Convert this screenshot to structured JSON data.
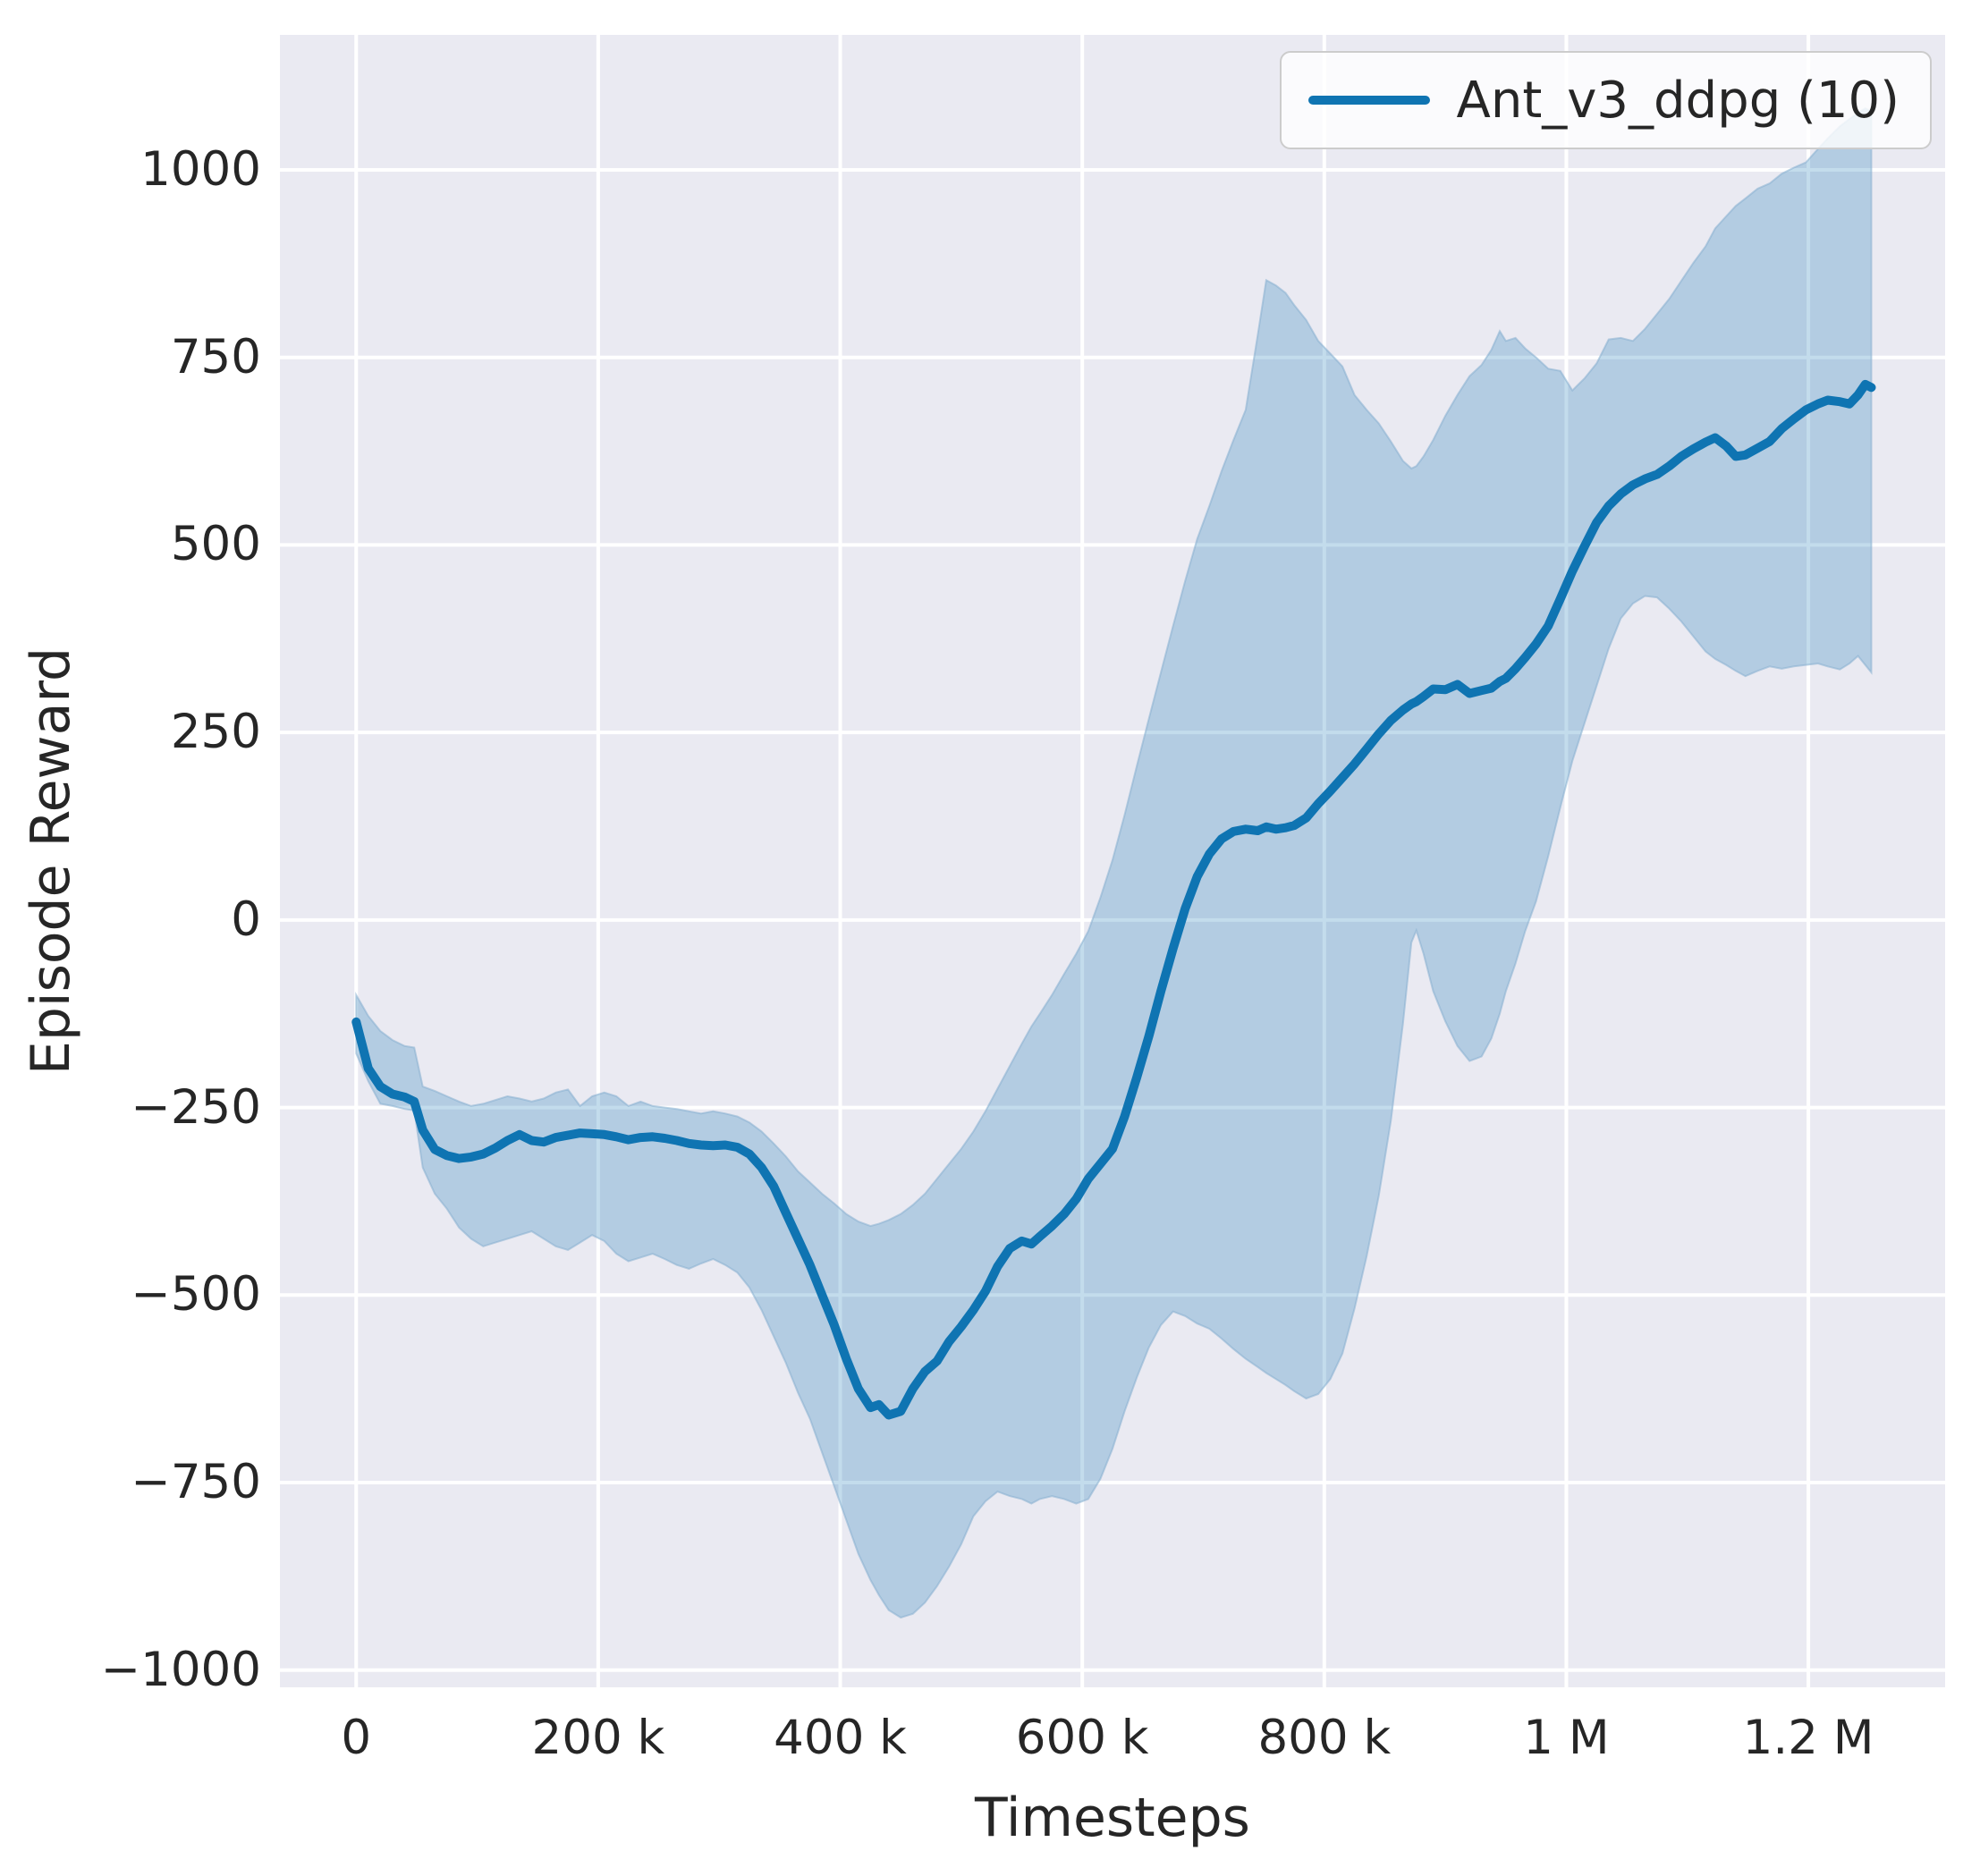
{
  "colors": {
    "accent": "#0f74b2",
    "band_fill": "#0f74b2",
    "band_opacity": 0.25,
    "band_edge": "#87aed0",
    "plot_bg": "#eaeaf2",
    "grid": "#ffffff",
    "text": "#262626",
    "figure_bg": "#ffffff"
  },
  "legend": {
    "label": "Ant_v3_ddpg (10)"
  },
  "axes": {
    "ylabel": "Episode Reward",
    "xlabel": "Timesteps",
    "xticks": [
      {
        "t": 0,
        "label": "0"
      },
      {
        "t": 200000,
        "label": "200 k"
      },
      {
        "t": 400000,
        "label": "400 k"
      },
      {
        "t": 600000,
        "label": "600 k"
      },
      {
        "t": 800000,
        "label": "800 k"
      },
      {
        "t": 1000000,
        "label": "1 M"
      },
      {
        "t": 1200000,
        "label": "1.2 M"
      }
    ],
    "yticks": [
      {
        "v": 1000,
        "label": "1000"
      },
      {
        "v": 750,
        "label": "750"
      },
      {
        "v": 500,
        "label": "500"
      },
      {
        "v": 250,
        "label": "250"
      },
      {
        "v": 0,
        "label": "0"
      },
      {
        "v": -250,
        "label": "−250"
      },
      {
        "v": -500,
        "label": "−500"
      },
      {
        "v": -750,
        "label": "−750"
      },
      {
        "v": -1000,
        "label": "−1000"
      }
    ]
  },
  "chart_data": {
    "type": "line",
    "title": "",
    "xlabel": "Timesteps",
    "ylabel": "Episode Reward",
    "legend_position": "upper right",
    "grid": true,
    "xlim": [
      -63000,
      1313000
    ],
    "ylim": [
      -1023,
      1180
    ],
    "series": [
      {
        "name": "Ant_v3_ddpg (10)",
        "t_scale": 1000,
        "t_k": [
          0,
          10,
          20,
          30,
          40,
          48,
          55,
          65,
          75,
          85,
          95,
          105,
          115,
          125,
          135,
          145,
          155,
          165,
          175,
          185,
          195,
          205,
          215,
          225,
          235,
          245,
          255,
          265,
          275,
          285,
          295,
          305,
          315,
          325,
          335,
          345,
          355,
          365,
          375,
          385,
          395,
          405,
          415,
          425,
          432,
          440,
          450,
          460,
          470,
          480,
          490,
          500,
          510,
          520,
          530,
          540,
          550,
          558,
          565,
          575,
          585,
          595,
          605,
          615,
          625,
          635,
          645,
          655,
          665,
          675,
          685,
          695,
          705,
          715,
          725,
          735,
          745,
          752,
          760,
          768,
          775,
          785,
          795,
          805,
          815,
          825,
          835,
          845,
          855,
          865,
          872,
          876,
          882,
          890,
          900,
          910,
          920,
          930,
          938,
          945,
          950,
          958,
          966,
          975,
          985,
          995,
          1005,
          1015,
          1025,
          1035,
          1045,
          1055,
          1065,
          1075,
          1085,
          1095,
          1105,
          1115,
          1123,
          1132,
          1140,
          1148,
          1158,
          1168,
          1178,
          1188,
          1198,
          1208,
          1216,
          1226,
          1234,
          1241,
          1247,
          1252
        ],
        "mean": [
          -136,
          -198,
          -222,
          -232,
          -236,
          -242,
          -280,
          -306,
          -314,
          -318,
          -316,
          -312,
          -304,
          -294,
          -286,
          -294,
          -296,
          -290,
          -287,
          -284,
          -285,
          -286,
          -289,
          -293,
          -290,
          -289,
          -291,
          -294,
          -298,
          -300,
          -301,
          -300,
          -303,
          -312,
          -330,
          -355,
          -390,
          -425,
          -460,
          -500,
          -540,
          -585,
          -625,
          -650,
          -646,
          -660,
          -655,
          -625,
          -602,
          -588,
          -562,
          -542,
          -520,
          -495,
          -462,
          -438,
          -428,
          -432,
          -422,
          -408,
          -392,
          -372,
          -345,
          -325,
          -305,
          -262,
          -210,
          -155,
          -95,
          -38,
          15,
          58,
          88,
          108,
          118,
          121,
          119,
          124,
          121,
          123,
          126,
          136,
          155,
          172,
          190,
          208,
          228,
          248,
          266,
          280,
          288,
          291,
          298,
          308,
          307,
          314,
          302,
          306,
          309,
          318,
          322,
          335,
          350,
          368,
          392,
          428,
          465,
          498,
          530,
          552,
          568,
          580,
          588,
          594,
          605,
          618,
          628,
          637,
          643,
          632,
          618,
          620,
          629,
          638,
          655,
          668,
          680,
          688,
          693,
          691,
          688,
          700,
          714,
          710
        ],
        "lower": [
          -178,
          -215,
          -245,
          -248,
          -252,
          -254,
          -330,
          -365,
          -385,
          -410,
          -425,
          -435,
          -430,
          -425,
          -420,
          -415,
          -425,
          -435,
          -440,
          -430,
          -420,
          -428,
          -445,
          -455,
          -450,
          -445,
          -452,
          -460,
          -465,
          -458,
          -452,
          -460,
          -470,
          -490,
          -520,
          -555,
          -590,
          -630,
          -665,
          -710,
          -755,
          -800,
          -845,
          -880,
          -900,
          -920,
          -930,
          -925,
          -910,
          -888,
          -862,
          -832,
          -795,
          -775,
          -762,
          -768,
          -772,
          -778,
          -772,
          -768,
          -772,
          -778,
          -772,
          -745,
          -705,
          -655,
          -610,
          -570,
          -540,
          -522,
          -528,
          -538,
          -545,
          -558,
          -572,
          -585,
          -596,
          -604,
          -612,
          -620,
          -628,
          -638,
          -632,
          -612,
          -578,
          -518,
          -448,
          -368,
          -268,
          -138,
          -30,
          -14,
          -45,
          -95,
          -135,
          -168,
          -188,
          -182,
          -158,
          -125,
          -95,
          -58,
          -15,
          25,
          85,
          150,
          212,
          262,
          312,
          362,
          402,
          422,
          432,
          430,
          415,
          398,
          378,
          358,
          348,
          340,
          332,
          325,
          332,
          338,
          335,
          338,
          340,
          342,
          338,
          334,
          342,
          352,
          340,
          330
        ],
        "upper": [
          -100,
          -128,
          -148,
          -160,
          -168,
          -170,
          -222,
          -228,
          -235,
          -242,
          -248,
          -245,
          -240,
          -235,
          -238,
          -242,
          -238,
          -230,
          -226,
          -248,
          -235,
          -230,
          -235,
          -248,
          -242,
          -248,
          -250,
          -252,
          -255,
          -258,
          -255,
          -258,
          -262,
          -270,
          -282,
          -298,
          -315,
          -335,
          -350,
          -365,
          -378,
          -392,
          -402,
          -408,
          -405,
          -400,
          -392,
          -380,
          -365,
          -345,
          -325,
          -305,
          -282,
          -255,
          -225,
          -195,
          -165,
          -142,
          -125,
          -100,
          -72,
          -45,
          -15,
          30,
          80,
          140,
          205,
          268,
          330,
          392,
          452,
          508,
          552,
          598,
          640,
          680,
          780,
          853,
          846,
          836,
          820,
          800,
          772,
          755,
          738,
          700,
          680,
          662,
          638,
          612,
          602,
          605,
          618,
          640,
          672,
          700,
          725,
          740,
          760,
          785,
          772,
          776,
          762,
          750,
          735,
          732,
          706,
          722,
          742,
          774,
          776,
          772,
          788,
          808,
          828,
          852,
          876,
          898,
          922,
          938,
          952,
          962,
          975,
          982,
          995,
          1003,
          1010,
          1028,
          1042,
          1058,
          1068,
          1076,
          1082,
          1078
        ]
      }
    ]
  }
}
